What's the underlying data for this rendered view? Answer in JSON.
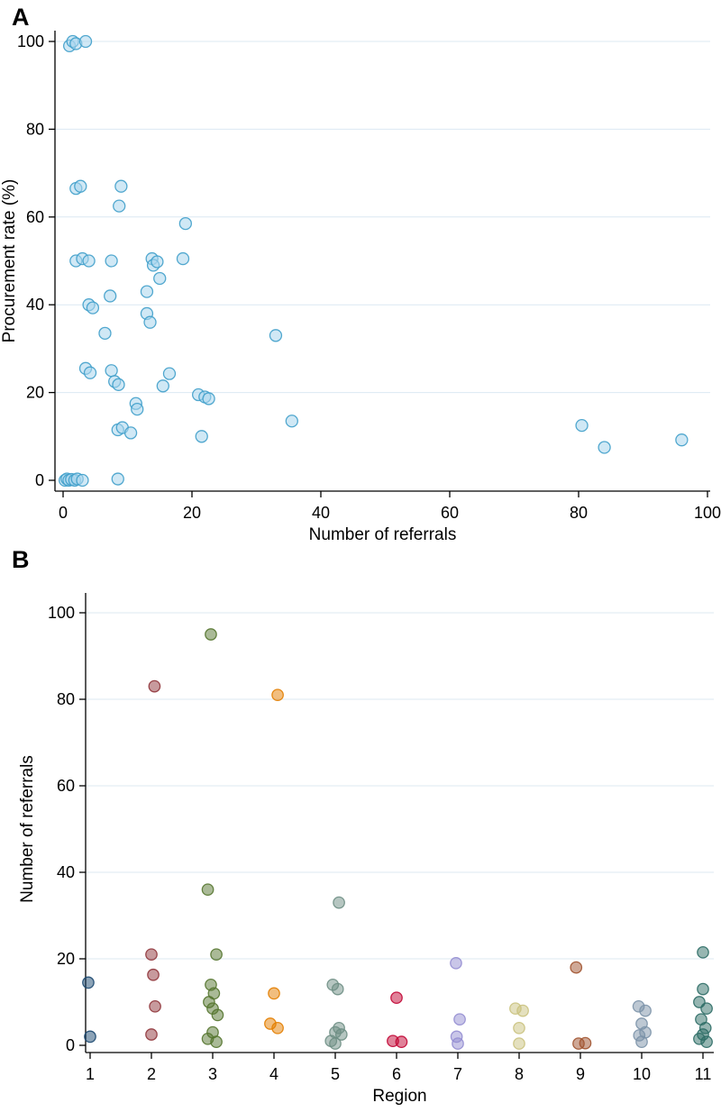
{
  "figure": {
    "panel_a_label": "A",
    "panel_b_label": "B",
    "background": "#ffffff"
  },
  "chart_data": [
    {
      "type": "scatter",
      "panel": "A",
      "title": "",
      "xlabel": "Number of referrals",
      "ylabel": "Procurement rate (%)",
      "xlim": [
        0,
        100
      ],
      "ylim": [
        0,
        100
      ],
      "xticks": [
        0,
        20,
        40,
        60,
        80,
        100
      ],
      "yticks": [
        0,
        20,
        40,
        60,
        80,
        100
      ],
      "grid": "horizontal",
      "grid_color": "#dce8f2",
      "axis_color": "#000000",
      "legend": "none",
      "marker_fill": "#a9d6ec",
      "marker_edge": "#3f9fca",
      "points": [
        [
          1,
          99
        ],
        [
          1.5,
          100
        ],
        [
          2,
          99.5
        ],
        [
          3.5,
          100
        ],
        [
          2,
          66.5
        ],
        [
          2.7,
          67
        ],
        [
          9,
          67
        ],
        [
          8.7,
          62.5
        ],
        [
          19,
          58.5
        ],
        [
          2,
          50
        ],
        [
          3,
          50.5
        ],
        [
          4,
          50
        ],
        [
          7.5,
          50
        ],
        [
          13.8,
          50.5
        ],
        [
          14,
          49
        ],
        [
          14.6,
          49.8
        ],
        [
          18.6,
          50.5
        ],
        [
          15,
          46
        ],
        [
          13,
          43
        ],
        [
          7.3,
          42
        ],
        [
          4,
          40
        ],
        [
          4.6,
          39.3
        ],
        [
          13,
          38
        ],
        [
          13.5,
          36
        ],
        [
          6.5,
          33.5
        ],
        [
          33,
          33
        ],
        [
          3.5,
          25.5
        ],
        [
          4.2,
          24.5
        ],
        [
          7.5,
          25
        ],
        [
          16.5,
          24.3
        ],
        [
          8,
          22.5
        ],
        [
          8.6,
          21.8
        ],
        [
          15.5,
          21.5
        ],
        [
          21,
          19.5
        ],
        [
          22,
          19
        ],
        [
          22.6,
          18.6
        ],
        [
          11.3,
          17.5
        ],
        [
          11.5,
          16.2
        ],
        [
          8.5,
          11.5
        ],
        [
          9.2,
          12
        ],
        [
          10.5,
          10.8
        ],
        [
          21.5,
          10
        ],
        [
          35.5,
          13.5
        ],
        [
          80.5,
          12.5
        ],
        [
          84,
          7.5
        ],
        [
          96,
          9.2
        ],
        [
          0.3,
          0
        ],
        [
          0.6,
          0.3
        ],
        [
          0.9,
          0
        ],
        [
          1.3,
          0.2
        ],
        [
          1.8,
          0
        ],
        [
          2.2,
          0.3
        ],
        [
          3,
          0
        ],
        [
          8.5,
          0.3
        ]
      ]
    },
    {
      "type": "scatter",
      "panel": "B",
      "title": "",
      "xlabel": "Region",
      "ylabel": "Number of referrals",
      "xlim": [
        1,
        11
      ],
      "ylim": [
        0,
        100
      ],
      "xticks": [
        1,
        2,
        3,
        4,
        5,
        6,
        7,
        8,
        9,
        10,
        11
      ],
      "yticks": [
        0,
        20,
        40,
        60,
        80,
        100
      ],
      "grid": "horizontal",
      "grid_color": "#dce8f2",
      "axis_color": "#000000",
      "legend": "none",
      "series": [
        {
          "name": "1",
          "color": "#1a476f",
          "points": [
            [
              0.97,
              14.5
            ],
            [
              1.0,
              2
            ]
          ]
        },
        {
          "name": "2",
          "color": "#90353b",
          "points": [
            [
              2.05,
              83
            ],
            [
              2.0,
              21
            ],
            [
              2.03,
              16.3
            ],
            [
              2.06,
              9
            ],
            [
              2.0,
              2.5
            ]
          ]
        },
        {
          "name": "3",
          "color": "#55752f",
          "points": [
            [
              2.97,
              95
            ],
            [
              2.92,
              36
            ],
            [
              3.06,
              21
            ],
            [
              2.97,
              14
            ],
            [
              3.02,
              12
            ],
            [
              2.94,
              10
            ],
            [
              3.0,
              8.5
            ],
            [
              3.08,
              7
            ],
            [
              3.0,
              3
            ],
            [
              2.92,
              1.5
            ],
            [
              3.06,
              0.8
            ]
          ]
        },
        {
          "name": "4",
          "color": "#e37e00",
          "points": [
            [
              4.06,
              81
            ],
            [
              4.0,
              12
            ],
            [
              3.94,
              5
            ],
            [
              4.06,
              4
            ]
          ]
        },
        {
          "name": "5",
          "color": "#6e8e84",
          "points": [
            [
              5.06,
              33
            ],
            [
              4.96,
              14
            ],
            [
              5.04,
              13
            ],
            [
              5.06,
              4
            ],
            [
              5.0,
              3
            ],
            [
              5.1,
              2.5
            ],
            [
              4.93,
              1
            ],
            [
              5.0,
              0.4
            ]
          ]
        },
        {
          "name": "6",
          "color": "#c10534",
          "points": [
            [
              6.0,
              11
            ],
            [
              5.94,
              1
            ],
            [
              6.08,
              0.8
            ]
          ]
        },
        {
          "name": "7",
          "color": "#938dd2",
          "points": [
            [
              6.97,
              19
            ],
            [
              7.03,
              6
            ],
            [
              6.98,
              2
            ],
            [
              7.0,
              0.4
            ]
          ]
        },
        {
          "name": "8",
          "color": "#cac27e",
          "points": [
            [
              7.94,
              8.5
            ],
            [
              8.06,
              8
            ],
            [
              8.0,
              4
            ],
            [
              8.0,
              0.4
            ]
          ]
        },
        {
          "name": "9",
          "color": "#a0522d",
          "points": [
            [
              8.93,
              18
            ],
            [
              8.97,
              0.4
            ],
            [
              9.08,
              0.5
            ]
          ]
        },
        {
          "name": "10",
          "color": "#7b92a8",
          "points": [
            [
              9.95,
              9
            ],
            [
              10.06,
              8
            ],
            [
              10.0,
              5
            ],
            [
              10.06,
              3
            ],
            [
              9.96,
              2.3
            ],
            [
              10.0,
              0.8
            ]
          ]
        },
        {
          "name": "11",
          "color": "#2d6d66",
          "points": [
            [
              11.0,
              21.5
            ],
            [
              11.0,
              13
            ],
            [
              10.94,
              10
            ],
            [
              11.06,
              8.5
            ],
            [
              10.97,
              6
            ],
            [
              11.04,
              4
            ],
            [
              11.0,
              2.5
            ],
            [
              10.94,
              1.5
            ],
            [
              11.06,
              0.8
            ]
          ]
        }
      ]
    }
  ]
}
